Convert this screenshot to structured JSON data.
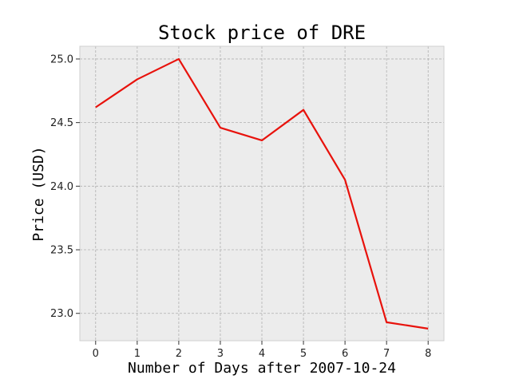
{
  "chart_data": {
    "type": "line",
    "title": "Stock price of DRE",
    "xlabel": "Number of Days after 2007-10-24",
    "ylabel": "Price (USD)",
    "x": [
      0,
      1,
      2,
      3,
      4,
      5,
      6,
      7,
      8
    ],
    "series": [
      {
        "values": [
          24.62,
          24.84,
          25.0,
          24.46,
          24.36,
          24.6,
          24.05,
          22.93,
          22.88
        ]
      }
    ],
    "xticks": [
      "0",
      "1",
      "2",
      "3",
      "4",
      "5",
      "6",
      "7",
      "8"
    ],
    "yticks": [
      "23.0",
      "23.5",
      "24.0",
      "24.5",
      "25.0"
    ],
    "xlim": [
      -0.38,
      8.38
    ],
    "ylim": [
      22.785,
      25.1
    ],
    "grid": true,
    "colors": {
      "line": "#e8120c",
      "plot_background": "#ececec",
      "grid": "#b0b0b0",
      "frame": "#cfcfcf"
    }
  }
}
